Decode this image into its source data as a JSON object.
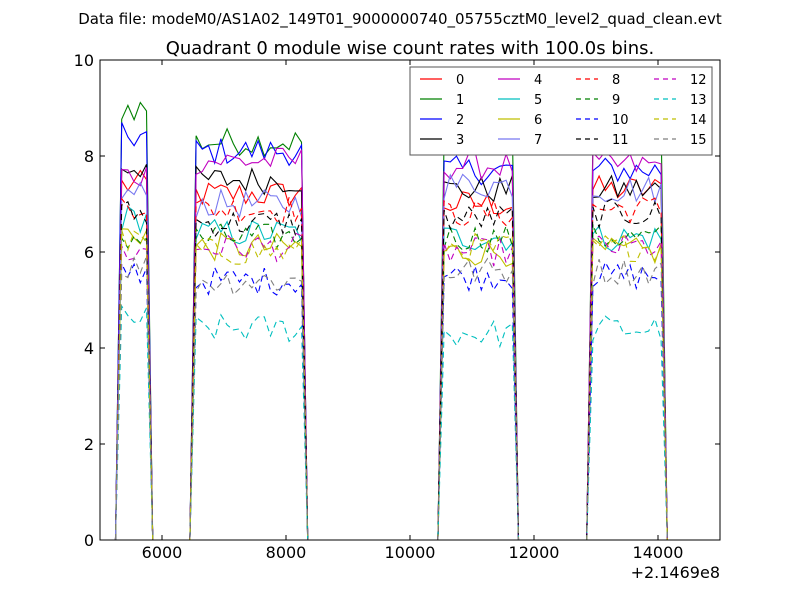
{
  "header": {
    "data_file": "Data file: modeM0/AS1A02_149T01_9000000740_05755cztM0_level2_quad_clean.evt"
  },
  "chart_data": {
    "type": "line",
    "title": "Quadrant 0 module wise count rates with 100.0s bins.",
    "xlabel": "",
    "ylabel": "",
    "x_offset_label": "+2.1469e8",
    "xlim": [
      5000,
      15000
    ],
    "ylim": [
      0,
      10
    ],
    "xticks": [
      6000,
      8000,
      10000,
      12000,
      14000
    ],
    "xtick_labels": [
      "6000",
      "8000",
      "10000",
      "12000",
      "14000"
    ],
    "yticks": [
      0,
      2,
      4,
      6,
      8,
      10
    ],
    "ytick_labels": [
      "0",
      "2",
      "4",
      "6",
      "8",
      "10"
    ],
    "grid": false,
    "legend_position": "top-right",
    "segments": [
      {
        "from": 5350,
        "step": 100,
        "n": 5
      },
      {
        "from": 6550,
        "step": 100,
        "n": 18
      },
      {
        "from": 10550,
        "step": 100,
        "n": 12
      },
      {
        "from": 12950,
        "step": 100,
        "n": 12
      }
    ],
    "series": [
      {
        "name": "0",
        "color": "#ff0000",
        "dash": "solid",
        "levels": [
          7.4,
          7.2,
          7.0,
          7.3
        ]
      },
      {
        "name": "1",
        "color": "#008000",
        "dash": "solid",
        "levels": [
          9.0,
          8.3,
          8.4,
          8.5
        ]
      },
      {
        "name": "2",
        "color": "#0000ff",
        "dash": "solid",
        "levels": [
          8.4,
          8.1,
          7.7,
          7.7
        ]
      },
      {
        "name": "3",
        "color": "#000000",
        "dash": "solid",
        "levels": [
          7.8,
          7.5,
          7.3,
          7.3
        ]
      },
      {
        "name": "4",
        "color": "#c000c0",
        "dash": "solid",
        "levels": [
          7.6,
          7.9,
          7.8,
          7.8
        ]
      },
      {
        "name": "5",
        "color": "#00bfbf",
        "dash": "solid",
        "levels": [
          6.7,
          6.4,
          6.3,
          6.3
        ]
      },
      {
        "name": "6",
        "color": "#bfbf00",
        "dash": "solid",
        "levels": [
          6.4,
          6.1,
          6.0,
          6.0
        ]
      },
      {
        "name": "7",
        "color": "#7878f0",
        "dash": "solid",
        "levels": [
          7.2,
          7.0,
          7.4,
          7.3
        ]
      },
      {
        "name": "8",
        "color": "#ff0000",
        "dash": "dashed",
        "levels": [
          7.0,
          6.9,
          6.8,
          6.9
        ]
      },
      {
        "name": "9",
        "color": "#008000",
        "dash": "dashed",
        "levels": [
          6.3,
          6.3,
          6.3,
          6.3
        ]
      },
      {
        "name": "10",
        "color": "#0000ff",
        "dash": "dashed",
        "levels": [
          5.6,
          5.4,
          5.5,
          5.5
        ]
      },
      {
        "name": "11",
        "color": "#000000",
        "dash": "dashed",
        "levels": [
          6.8,
          6.6,
          6.7,
          6.8
        ]
      },
      {
        "name": "12",
        "color": "#c000c0",
        "dash": "dashed",
        "levels": [
          6.0,
          6.1,
          6.0,
          6.1
        ]
      },
      {
        "name": "13",
        "color": "#00bfbf",
        "dash": "dashed",
        "levels": [
          4.6,
          4.4,
          4.3,
          4.4
        ]
      },
      {
        "name": "14",
        "color": "#bfbf00",
        "dash": "dashed",
        "levels": [
          6.2,
          6.0,
          6.1,
          6.1
        ]
      },
      {
        "name": "15",
        "color": "#7f7f7f",
        "dash": "dashed",
        "levels": [
          5.7,
          5.4,
          5.6,
          5.6
        ]
      }
    ]
  }
}
